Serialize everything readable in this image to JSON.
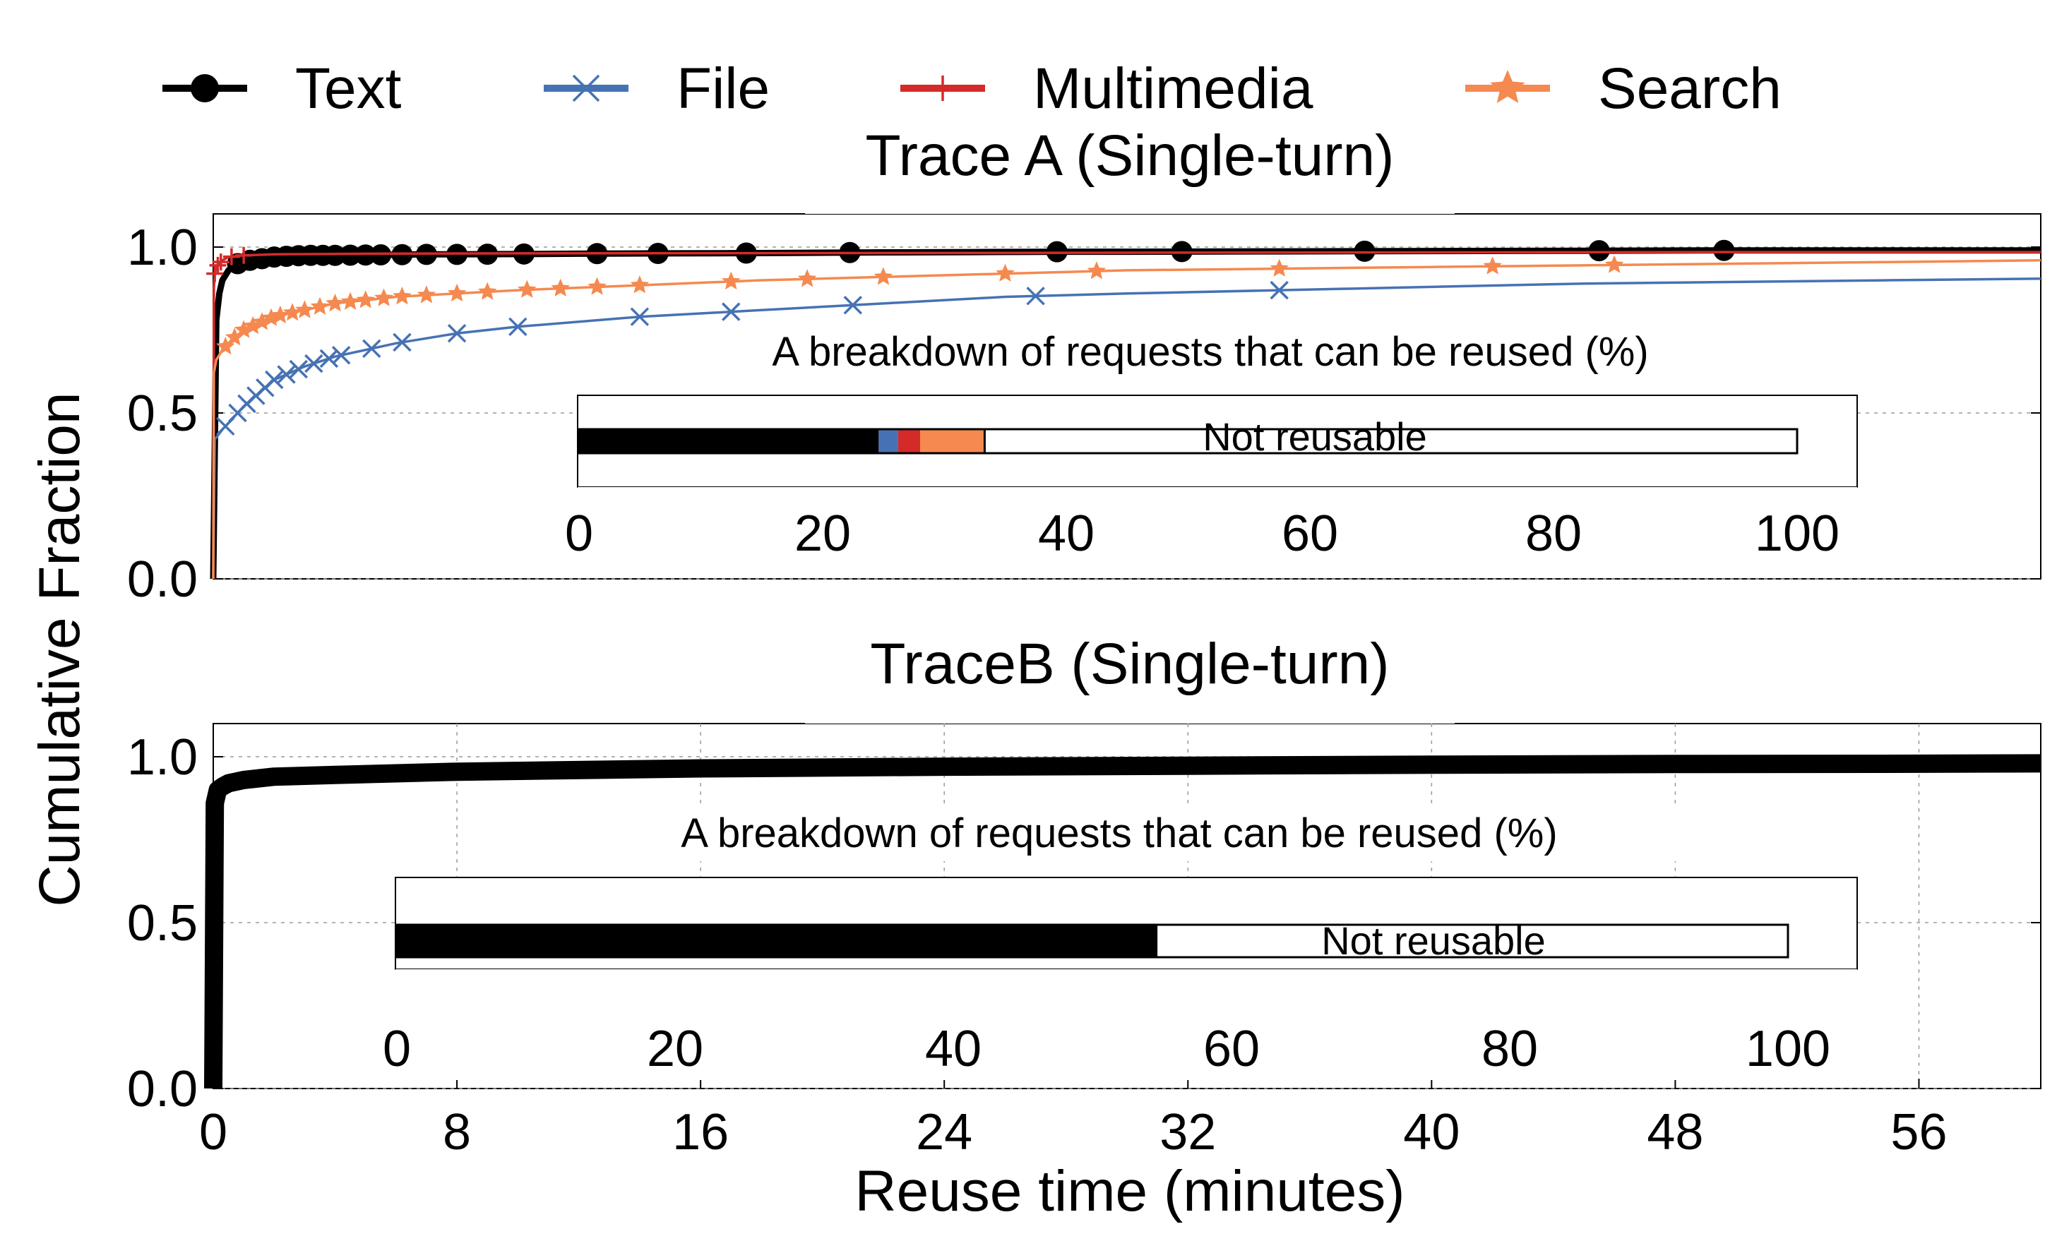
{
  "legend": {
    "items": [
      {
        "label": "Text",
        "color": "#000000",
        "marker": "circle"
      },
      {
        "label": "File",
        "color": "#4672b4",
        "marker": "x"
      },
      {
        "label": "Multimedia",
        "color": "#d42a2a",
        "marker": "plus"
      },
      {
        "label": "Search",
        "color": "#f5894f",
        "marker": "star"
      }
    ]
  },
  "axes": {
    "ylabel": "Cumulative Fraction",
    "xlabel": "Reuse time (minutes)"
  },
  "chart_data": [
    {
      "type": "line",
      "title": "Trace A (Single-turn)",
      "xlabel": "Reuse time (minutes)",
      "ylabel": "Cumulative Fraction",
      "xlim": [
        0,
        60
      ],
      "ylim": [
        0,
        1.1
      ],
      "yticks": [
        "0.0",
        "0.5",
        "1.0"
      ],
      "series": [
        {
          "name": "Text",
          "color": "#000000",
          "marker": "circle",
          "x": [
            0,
            0.1,
            0.2,
            0.3,
            0.5,
            0.8,
            1.2,
            2,
            3,
            4,
            5,
            6,
            7,
            8,
            10,
            12,
            15,
            18,
            20,
            22,
            25,
            28,
            30,
            35,
            40,
            45,
            50,
            55,
            60
          ],
          "y": [
            0,
            0.78,
            0.86,
            0.9,
            0.93,
            0.95,
            0.96,
            0.97,
            0.975,
            0.975,
            0.976,
            0.977,
            0.978,
            0.978,
            0.979,
            0.98,
            0.981,
            0.982,
            0.983,
            0.984,
            0.985,
            0.986,
            0.986,
            0.987,
            0.988,
            0.989,
            0.99,
            0.99,
            0.99
          ],
          "markers_x": [
            0.8,
            1.2,
            1.6,
            2.0,
            2.4,
            2.8,
            3.2,
            3.6,
            4.0,
            4.5,
            5.0,
            5.5,
            6.2,
            7.0,
            8.0,
            9.0,
            10.2,
            12.6,
            14.6,
            17.5,
            20.9,
            27.7,
            31.8,
            37.8,
            45.5,
            49.6
          ]
        },
        {
          "name": "File",
          "color": "#4672b4",
          "marker": "x",
          "x": [
            0,
            0.05,
            0.3,
            0.6,
            1,
            1.5,
            2,
            3,
            4,
            5,
            6,
            8,
            10,
            14,
            18,
            22,
            26,
            30,
            35,
            40,
            45,
            50,
            55,
            60
          ],
          "y": [
            0,
            0.42,
            0.45,
            0.48,
            0.52,
            0.56,
            0.6,
            0.64,
            0.67,
            0.69,
            0.71,
            0.74,
            0.76,
            0.79,
            0.81,
            0.83,
            0.85,
            0.86,
            0.87,
            0.88,
            0.89,
            0.895,
            0.9,
            0.905
          ],
          "markers_x": [
            0.4,
            0.8,
            1.1,
            1.4,
            1.7,
            2.0,
            2.4,
            2.8,
            3.3,
            3.8,
            4.2,
            5.2,
            6.2,
            8.0,
            10.0,
            14.0,
            17.0,
            21.0,
            27.0,
            35.0
          ]
        },
        {
          "name": "Multimedia",
          "color": "#d42a2a",
          "marker": "plus",
          "x": [
            0,
            0.02,
            0.05,
            0.1,
            0.2,
            0.3,
            0.5,
            1,
            2,
            5,
            10,
            20,
            30,
            40,
            50,
            60
          ],
          "y": [
            0,
            0.88,
            0.92,
            0.94,
            0.95,
            0.96,
            0.97,
            0.975,
            0.978,
            0.98,
            0.981,
            0.982,
            0.983,
            0.984,
            0.985,
            0.985
          ],
          "markers_x": [
            0.05,
            0.15,
            0.25,
            0.6,
            1.0
          ]
        },
        {
          "name": "Search",
          "color": "#f5894f",
          "marker": "star",
          "x": [
            0,
            0.02,
            0.1,
            0.3,
            0.6,
            1,
            1.5,
            2,
            3,
            4,
            5,
            6,
            8,
            10,
            14,
            18,
            22,
            26,
            30,
            35,
            40,
            45,
            50,
            55,
            60
          ],
          "y": [
            0,
            0.62,
            0.66,
            0.69,
            0.72,
            0.75,
            0.77,
            0.79,
            0.81,
            0.83,
            0.84,
            0.85,
            0.86,
            0.87,
            0.885,
            0.9,
            0.91,
            0.92,
            0.93,
            0.935,
            0.94,
            0.945,
            0.95,
            0.955,
            0.96
          ],
          "markers_x": [
            0.4,
            0.7,
            1.0,
            1.3,
            1.6,
            1.9,
            2.2,
            2.6,
            3.0,
            3.5,
            4.0,
            4.5,
            5.0,
            5.6,
            6.2,
            7.0,
            8.0,
            9.0,
            10.3,
            11.4,
            12.6,
            14.0,
            17.0,
            19.5,
            22.0,
            26.0,
            29.0,
            35.0,
            42.0,
            46.0
          ]
        }
      ],
      "inset": {
        "title": "A breakdown of requests that can be reused (%)",
        "type": "stacked_bar",
        "xlim": [
          0,
          100
        ],
        "xticks": [
          "0",
          "20",
          "40",
          "60",
          "80",
          "100"
        ],
        "segments": [
          {
            "name": "Text",
            "value": 24.6,
            "color": "#000000"
          },
          {
            "name": "File",
            "value": 1.6,
            "color": "#4672b4"
          },
          {
            "name": "Multimedia",
            "value": 1.8,
            "color": "#d42a2a"
          },
          {
            "name": "Search",
            "value": 5.3,
            "color": "#f5894f"
          },
          {
            "name": "Not reusable",
            "value": 66.7,
            "color": "#ffffff"
          }
        ],
        "label": "Not reusable"
      }
    },
    {
      "type": "line",
      "title": "TraceB (Single-turn)",
      "xlabel": "Reuse time (minutes)",
      "ylabel": "Cumulative Fraction",
      "xlim": [
        0,
        60
      ],
      "xticks": [
        "0",
        "8",
        "16",
        "24",
        "32",
        "40",
        "48",
        "56"
      ],
      "ylim": [
        0,
        1.1
      ],
      "yticks": [
        "0.0",
        "0.5",
        "1.0"
      ],
      "series": [
        {
          "name": "Text",
          "color": "#000000",
          "marker": "circle",
          "x": [
            0,
            0.05,
            0.15,
            0.3,
            0.5,
            1,
            2,
            4,
            8,
            16,
            24,
            32,
            40,
            48,
            56,
            60
          ],
          "y": [
            0,
            0.86,
            0.9,
            0.91,
            0.92,
            0.93,
            0.94,
            0.945,
            0.955,
            0.965,
            0.97,
            0.973,
            0.976,
            0.978,
            0.979,
            0.98
          ]
        }
      ],
      "inset": {
        "title": "A breakdown of requests that can be reused (%)",
        "type": "stacked_bar",
        "xlim": [
          0,
          100
        ],
        "xticks": [
          "0",
          "20",
          "40",
          "60",
          "80",
          "100"
        ],
        "segments": [
          {
            "name": "Text",
            "value": 54.6,
            "color": "#000000"
          },
          {
            "name": "Not reusable",
            "value": 45.4,
            "color": "#ffffff"
          }
        ],
        "label": "Not reusable"
      }
    }
  ]
}
